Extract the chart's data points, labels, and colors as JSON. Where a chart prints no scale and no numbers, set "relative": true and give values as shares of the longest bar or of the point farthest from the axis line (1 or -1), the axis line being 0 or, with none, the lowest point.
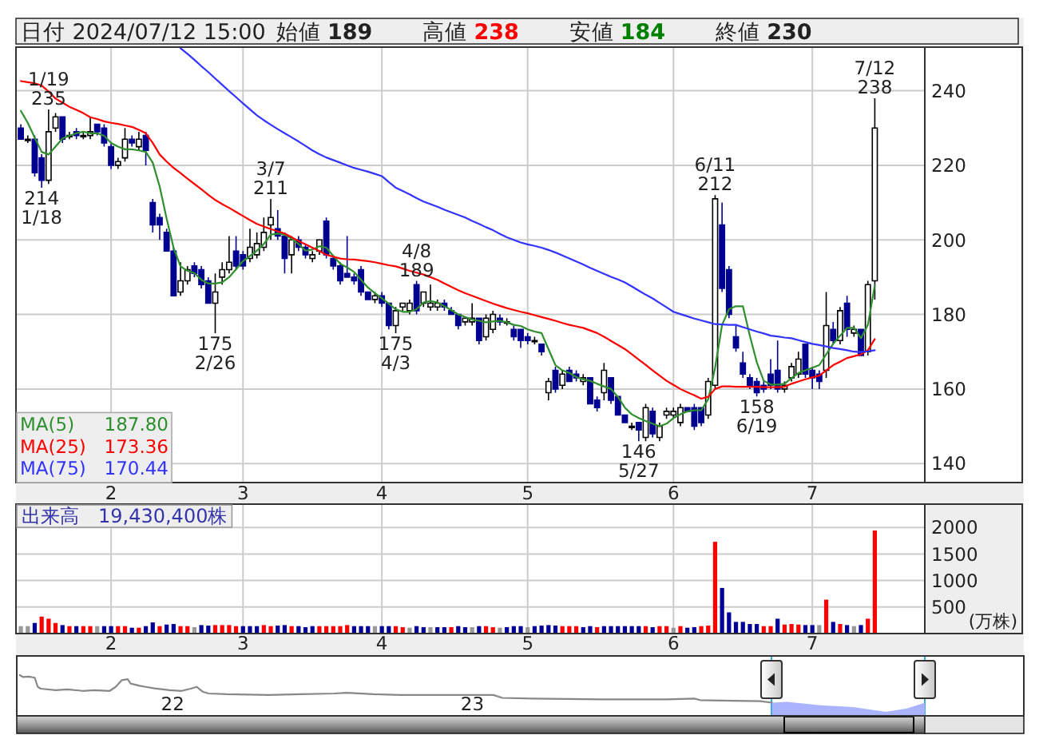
{
  "chart_data": [
    {
      "type": "candlestick",
      "title": "日付 2024/07/12 15:00 始値 189 高値 238 安値 184 終値 230",
      "categories": [
        null,
        null,
        null,
        null,
        null,
        null,
        null,
        null,
        null,
        null,
        null,
        null,
        null,
        "2",
        null,
        null,
        null,
        null,
        null,
        null,
        null,
        null,
        null,
        null,
        null,
        null,
        null,
        null,
        null,
        null,
        null,
        null,
        "3",
        null,
        null,
        null,
        null,
        null,
        null,
        null,
        null,
        null,
        null,
        null,
        null,
        null,
        null,
        null,
        null,
        null,
        null,
        null,
        "4",
        null,
        null,
        null,
        null,
        null,
        null,
        null,
        null,
        null,
        null,
        null,
        null,
        null,
        null,
        null,
        null,
        null,
        null,
        null,
        null,
        "5",
        null,
        null,
        null,
        null,
        null,
        null,
        null,
        null,
        null,
        null,
        null,
        null,
        null,
        null,
        null,
        null,
        null,
        null,
        null,
        null,
        "6",
        null,
        null,
        null,
        null,
        null,
        null,
        null,
        null,
        null,
        null,
        null,
        null,
        null,
        null,
        null,
        null,
        null,
        null,
        null,
        "7",
        null,
        null,
        null,
        null,
        null,
        null,
        null,
        null,
        null
      ],
      "ohlc": [
        [
          230,
          231,
          227,
          227
        ],
        [
          227,
          228,
          226,
          227
        ],
        [
          227,
          228,
          217,
          218
        ],
        [
          222,
          223,
          214,
          216
        ],
        [
          216,
          235,
          215,
          229
        ],
        [
          230,
          234,
          229,
          233
        ],
        [
          233,
          233,
          226,
          227
        ],
        [
          228,
          229,
          227,
          228
        ],
        [
          229,
          230,
          227,
          228
        ],
        [
          228,
          229,
          227,
          228
        ],
        [
          228,
          233,
          227,
          229
        ],
        [
          231,
          231,
          228,
          229
        ],
        [
          230,
          231,
          225,
          226
        ],
        [
          225,
          226,
          219,
          220
        ],
        [
          220,
          222,
          219,
          221
        ],
        [
          222,
          230,
          221,
          227
        ],
        [
          227,
          228,
          225,
          226
        ],
        [
          225,
          229,
          224,
          227
        ],
        [
          228,
          229,
          220,
          224
        ],
        [
          210,
          211,
          202,
          204
        ],
        [
          206,
          207,
          200,
          204
        ],
        [
          202,
          203,
          197,
          197
        ],
        [
          197,
          198,
          185,
          185
        ],
        [
          186,
          194,
          185,
          189
        ],
        [
          189,
          193,
          188,
          192
        ],
        [
          193,
          194,
          190,
          191
        ],
        [
          192,
          193,
          187,
          188
        ],
        [
          189,
          190,
          183,
          183
        ],
        [
          183,
          191,
          175,
          186
        ],
        [
          190,
          194,
          188,
          192
        ],
        [
          192,
          201,
          191,
          194
        ],
        [
          197,
          201,
          192,
          193
        ],
        [
          196,
          197,
          192,
          193
        ],
        [
          195,
          203,
          194,
          198
        ],
        [
          196,
          202,
          195,
          199
        ],
        [
          198,
          206,
          197,
          202
        ],
        [
          204,
          211,
          200,
          206
        ],
        [
          203,
          208,
          200,
          201
        ],
        [
          201,
          202,
          191,
          195
        ],
        [
          196,
          201,
          191,
          200
        ],
        [
          200,
          201,
          197,
          198
        ],
        [
          198,
          199,
          195,
          196
        ],
        [
          195,
          197,
          194,
          196
        ],
        [
          197,
          200,
          196,
          200
        ],
        [
          205,
          206,
          195,
          196
        ],
        [
          195,
          196,
          192,
          193
        ],
        [
          193,
          194,
          188,
          189
        ],
        [
          191,
          201,
          190,
          190
        ],
        [
          190,
          191,
          188,
          189
        ],
        [
          192,
          193,
          185,
          186
        ],
        [
          186,
          186,
          184,
          184
        ],
        [
          184,
          186,
          183,
          185
        ],
        [
          185,
          186,
          182,
          183
        ],
        [
          183,
          183,
          176,
          177
        ],
        [
          177,
          182,
          175,
          181
        ],
        [
          182,
          183,
          181,
          183
        ],
        [
          181,
          184,
          180,
          183
        ],
        [
          188,
          189,
          180,
          181
        ],
        [
          183,
          186,
          182,
          186
        ],
        [
          182,
          188,
          181,
          183
        ],
        [
          182,
          184,
          181,
          183
        ],
        [
          183,
          184,
          181,
          182
        ],
        [
          181,
          182,
          180,
          180
        ],
        [
          180,
          180,
          176,
          177
        ],
        [
          178,
          179,
          177,
          179
        ],
        [
          178,
          183,
          177,
          179
        ],
        [
          179,
          179,
          172,
          173
        ],
        [
          174,
          180,
          173,
          179
        ],
        [
          176,
          181,
          175,
          180
        ],
        [
          179,
          180,
          177,
          178
        ],
        [
          178,
          179,
          177,
          178
        ],
        [
          176,
          177,
          173,
          174
        ],
        [
          176,
          176,
          171,
          173
        ],
        [
          174,
          175,
          172,
          173
        ],
        [
          173,
          174,
          172,
          173
        ],
        [
          172,
          172,
          169,
          170
        ],
        [
          159,
          163,
          157,
          162
        ],
        [
          165,
          166,
          159,
          160
        ],
        [
          161,
          165,
          160,
          164
        ],
        [
          165,
          166,
          162,
          162
        ],
        [
          164,
          165,
          162,
          163
        ],
        [
          162,
          164,
          161,
          163
        ],
        [
          163,
          163,
          156,
          156
        ],
        [
          157,
          158,
          154,
          155
        ],
        [
          159,
          167,
          157,
          165
        ],
        [
          163,
          163,
          156,
          157
        ],
        [
          158,
          158,
          153,
          153
        ],
        [
          153,
          153,
          151,
          151
        ],
        [
          150,
          151,
          149,
          150
        ],
        [
          151,
          151,
          146,
          149
        ],
        [
          147,
          156,
          146,
          155
        ],
        [
          154,
          155,
          147,
          148
        ],
        [
          147,
          151,
          146,
          150
        ],
        [
          153,
          155,
          152,
          154
        ],
        [
          153,
          155,
          152,
          154
        ],
        [
          151,
          156,
          150,
          155
        ],
        [
          155,
          155,
          154,
          154
        ],
        [
          155,
          156,
          149,
          150
        ],
        [
          155,
          155,
          150,
          151
        ],
        [
          153,
          163,
          152,
          162
        ],
        [
          161,
          212,
          160,
          211
        ],
        [
          204,
          210,
          186,
          187
        ],
        [
          192,
          193,
          179,
          180
        ],
        [
          174,
          177,
          170,
          171
        ],
        [
          167,
          170,
          163,
          164
        ],
        [
          163,
          164,
          160,
          161
        ],
        [
          162,
          163,
          158,
          159
        ],
        [
          161,
          162,
          159,
          160
        ],
        [
          164,
          168,
          160,
          161
        ],
        [
          165,
          173,
          159,
          160
        ],
        [
          160,
          162,
          159,
          161
        ],
        [
          163,
          167,
          162,
          166
        ],
        [
          164,
          170,
          163,
          168
        ],
        [
          172,
          172,
          163,
          164
        ],
        [
          165,
          166,
          160,
          163
        ],
        [
          164,
          165,
          160,
          162
        ],
        [
          165,
          186,
          163,
          177
        ],
        [
          176,
          178,
          172,
          173
        ],
        [
          173,
          182,
          172,
          181
        ],
        [
          183,
          185,
          174,
          176
        ],
        [
          175,
          177,
          174,
          176
        ],
        [
          176,
          176,
          169,
          169
        ],
        [
          170,
          189,
          169,
          188
        ],
        [
          189,
          238,
          184,
          230
        ]
      ],
      "series": [
        {
          "name": "MA(5)",
          "type": "line",
          "color": "#2f8f2f",
          "values": [
            234.6,
            231.4,
            227.4,
            223.6,
            222.9,
            225.0,
            227.2,
            227.9,
            228.6,
            229.0,
            228.6,
            228.6,
            227.9,
            226.0,
            225.0,
            224.3,
            224.3,
            224.0,
            223.6,
            220.7,
            214.3,
            205.7,
            197.9,
            192.9,
            191.7,
            191.1,
            189.3,
            188.3,
            188.3,
            188.6,
            190.0,
            192.1,
            194.3,
            195.7,
            197.1,
            198.9,
            201.4,
            201.7,
            201.4,
            200.3,
            198.9,
            197.1,
            197.4,
            198.3,
            197.9,
            195.7,
            193.6,
            192.6,
            191.4,
            189.3,
            187.2,
            185.7,
            184.3,
            182.9,
            181.4,
            180.7,
            180.7,
            181.4,
            183.2,
            183.6,
            183.2,
            182.2,
            181.2,
            180.0,
            179.3,
            178.6,
            178.3,
            177.9,
            178.1,
            178.3,
            177.9,
            177.2,
            176.9,
            176.0,
            175.4,
            175.0,
            170.7,
            166.4,
            165.0,
            164.3,
            163.2,
            162.6,
            162.2,
            161.4,
            160.7,
            160.0,
            157.9,
            155.0,
            153.2,
            152.2,
            151.4,
            150.7,
            150.0,
            150.7,
            152.2,
            153.2,
            154.0,
            154.3,
            154.3,
            157.2,
            165.7,
            177.2,
            181.4,
            182.2,
            182.2,
            174.3,
            167.2,
            162.2,
            161.2,
            161.2,
            161.4,
            162.9,
            164.3,
            165.0,
            165.7,
            166.4,
            169.3,
            172.1,
            174.3,
            176.4,
            176.4,
            173.6,
            177.2,
            187.8
          ]
        },
        {
          "name": "MA(25)",
          "type": "line",
          "color": "#ff0000",
          "values": [
            242.6,
            242.3,
            242.0,
            241.4,
            239.8,
            237.9,
            236.8,
            235.7,
            234.9,
            234.0,
            232.9,
            232.4,
            231.8,
            231.4,
            231.1,
            230.7,
            230.3,
            229.5,
            228.6,
            226.0,
            222.9,
            221.0,
            219.3,
            217.9,
            216.4,
            215.0,
            213.6,
            212.1,
            210.7,
            209.6,
            208.6,
            207.5,
            206.4,
            205.3,
            204.3,
            203.6,
            202.9,
            202.3,
            201.7,
            200.7,
            199.7,
            198.8,
            197.9,
            197.0,
            196.0,
            195.5,
            195.0,
            194.8,
            194.7,
            194.5,
            194.3,
            194.0,
            193.6,
            193.2,
            192.9,
            192.3,
            191.7,
            191.2,
            190.7,
            190.0,
            189.3,
            188.3,
            187.4,
            186.5,
            185.7,
            185.0,
            184.3,
            183.6,
            182.9,
            182.3,
            181.7,
            181.2,
            180.7,
            180.3,
            179.8,
            179.3,
            178.8,
            178.3,
            177.7,
            177.2,
            176.8,
            176.4,
            175.7,
            175.0,
            174.0,
            172.9,
            171.8,
            170.7,
            169.3,
            167.9,
            166.5,
            165.0,
            163.6,
            162.2,
            161.1,
            160.0,
            159.1,
            158.3,
            157.4,
            157.9,
            160.0,
            160.7,
            160.7,
            160.6,
            160.6,
            160.6,
            160.6,
            160.5,
            160.5,
            160.5,
            160.6,
            161.4,
            162.0,
            162.6,
            163.1,
            163.6,
            165.0,
            166.4,
            167.3,
            168.3,
            168.8,
            169.3,
            170.4,
            173.4
          ]
        },
        {
          "name": "MA(75)",
          "type": "line",
          "color": "#3333ff",
          "values": [
            null,
            null,
            null,
            null,
            null,
            null,
            null,
            null,
            null,
            null,
            null,
            null,
            null,
            null,
            null,
            null,
            null,
            null,
            null,
            null,
            null,
            null,
            null,
            251.4,
            249.9,
            248.3,
            246.6,
            245.0,
            243.3,
            241.6,
            239.9,
            238.3,
            236.6,
            235.0,
            233.4,
            232.1,
            230.9,
            229.7,
            228.6,
            227.5,
            226.4,
            225.2,
            224.0,
            223.0,
            222.1,
            221.4,
            220.7,
            220.0,
            219.3,
            218.8,
            218.3,
            217.7,
            217.1,
            215.5,
            214.0,
            213.1,
            212.2,
            211.2,
            210.3,
            209.6,
            208.9,
            208.1,
            207.4,
            206.7,
            206.0,
            205.1,
            204.3,
            203.4,
            202.6,
            201.6,
            200.7,
            200.0,
            199.3,
            198.8,
            198.4,
            197.9,
            197.3,
            196.6,
            195.8,
            195.0,
            194.2,
            193.4,
            192.5,
            191.7,
            190.9,
            190.1,
            189.4,
            188.6,
            187.5,
            186.4,
            185.3,
            184.3,
            183.1,
            181.9,
            180.7,
            180.1,
            179.5,
            178.9,
            178.4,
            177.9,
            177.4,
            177.3,
            177.2,
            177.2,
            176.6,
            176.0,
            175.4,
            174.9,
            174.3,
            174.1,
            173.8,
            173.6,
            173.1,
            172.6,
            172.1,
            171.8,
            171.4,
            171.0,
            170.7,
            170.4,
            170.0,
            169.9,
            170.1,
            170.4
          ]
        }
      ],
      "ylim": [
        134.9,
        251.7
      ],
      "yticks": [
        140,
        160,
        180,
        200,
        220,
        240
      ],
      "grid": true,
      "legend": "bottom left",
      "annotations": [
        {
          "text": "1/19\n235",
          "y": 235
        },
        {
          "text": "214\n1/18",
          "y": 214
        },
        {
          "text": "175\n2/26",
          "y": 175
        },
        {
          "text": "3/7\n211",
          "y": 211
        },
        {
          "text": "175\n4/3",
          "y": 175
        },
        {
          "text": "4/8\n189",
          "y": 189
        },
        {
          "text": "146\n5/27",
          "y": 146
        },
        {
          "text": "6/11\n212",
          "y": 212
        },
        {
          "text": "158\n6/19",
          "y": 158
        },
        {
          "text": "7/12\n238",
          "y": 238
        },
        "187.80",
        "173.36",
        "170.44"
      ]
    },
    {
      "type": "bar",
      "title": "出来高　19,430,400株",
      "ylabel": "(万株)",
      "categories": [
        null,
        null,
        null,
        null,
        null,
        null,
        null,
        null,
        null,
        null,
        null,
        null,
        null,
        "2",
        null,
        null,
        null,
        null,
        null,
        null,
        null,
        null,
        null,
        null,
        null,
        null,
        null,
        null,
        null,
        null,
        null,
        null,
        "3",
        null,
        null,
        null,
        null,
        null,
        null,
        null,
        null,
        null,
        null,
        null,
        null,
        null,
        null,
        null,
        null,
        null,
        null,
        null,
        "4",
        null,
        null,
        null,
        null,
        null,
        null,
        null,
        null,
        null,
        null,
        null,
        null,
        null,
        null,
        null,
        null,
        null,
        null,
        null,
        null,
        "5",
        null,
        null,
        null,
        null,
        null,
        null,
        null,
        null,
        null,
        null,
        null,
        null,
        null,
        null,
        null,
        null,
        null,
        null,
        null,
        null,
        "6",
        null,
        null,
        null,
        null,
        null,
        null,
        null,
        null,
        null,
        null,
        null,
        null,
        null,
        null,
        null,
        null,
        null,
        null,
        null,
        "7",
        null,
        null,
        null,
        null,
        null,
        null,
        null,
        null,
        null
      ],
      "values": [
        140,
        140,
        200,
        320,
        280,
        200,
        160,
        140,
        140,
        140,
        140,
        140,
        140,
        140,
        140,
        140,
        110,
        110,
        140,
        210,
        140,
        170,
        180,
        140,
        140,
        120,
        160,
        150,
        160,
        160,
        160,
        140,
        140,
        140,
        140,
        160,
        140,
        150,
        160,
        140,
        140,
        120,
        140,
        140,
        140,
        140,
        140,
        160,
        140,
        140,
        140,
        140,
        140,
        140,
        140,
        120,
        110,
        140,
        120,
        120,
        120,
        120,
        120,
        140,
        120,
        120,
        140,
        140,
        120,
        110,
        120,
        140,
        140,
        120,
        140,
        150,
        160,
        150,
        140,
        140,
        140,
        120,
        140,
        120,
        140,
        140,
        140,
        140,
        140,
        140,
        140,
        120,
        140,
        140,
        110,
        140,
        110,
        120,
        140,
        150,
        1730,
        860,
        400,
        220,
        220,
        180,
        180,
        140,
        140,
        280,
        170,
        180,
        170,
        160,
        160,
        160,
        640,
        220,
        180,
        160,
        140,
        160,
        280,
        1943.04
      ],
      "colors": [
        "#999999",
        "#999999",
        "#000099",
        "#ff0000",
        "#ff0000",
        "#ff0000",
        "#000099",
        "#ff0000",
        "#000099",
        "#ff0000",
        "#ff0000",
        "#999999",
        "#000099",
        "#000099",
        "#ff0000",
        "#ff0000",
        "#000099",
        "#ff0000",
        "#000099",
        "#000099",
        "#ff0000",
        "#000099",
        "#000099",
        "#ff0000",
        "#ff0000",
        "#999999",
        "#000099",
        "#000099",
        "#ff0000",
        "#ff0000",
        "#ff0000",
        "#ff0000",
        "#000099",
        "#000099",
        "#000099",
        "#ff0000",
        "#ff0000",
        "#000099",
        "#000099",
        "#ff0000",
        "#000099",
        "#000099",
        "#000099",
        "#ff0000",
        "#ff0000",
        "#ff0000",
        "#ff0000",
        "#ff0000",
        "#000099",
        "#000099",
        "#000099",
        "#999999",
        "#000099",
        "#000099",
        "#ff0000",
        "#ff0000",
        "#999999",
        "#000099",
        "#000099",
        "#999999",
        "#000099",
        "#000099",
        "#ff0000",
        "#000099",
        "#000099",
        "#999999",
        "#000099",
        "#ff0000",
        "#ff0000",
        "#999999",
        "#000099",
        "#000099",
        "#000099",
        "#999999",
        "#000099",
        "#000099",
        "#000099",
        "#000099",
        "#ff0000",
        "#ff0000",
        "#ff0000",
        "#000099",
        "#000099",
        "#ff0000",
        "#000099",
        "#000099",
        "#000099",
        "#000099",
        "#000099",
        "#000099",
        "#ff0000",
        "#000099",
        "#ff0000",
        "#ff0000",
        "#999999",
        "#ff0000",
        "#000099",
        "#000099",
        "#ff0000",
        "#ff0000",
        "#ff0000",
        "#000099",
        "#000099",
        "#000099",
        "#000099",
        "#000099",
        "#000099",
        "#ff0000",
        "#ff0000",
        "#000099",
        "#ff0000",
        "#ff0000",
        "#ff0000",
        "#000099",
        "#000099",
        "#999999",
        "#ff0000",
        "#000099",
        "#ff0000",
        "#000099",
        "#999999",
        "#000099",
        "#ff0000",
        "#ff0000"
      ],
      "ylim": [
        0,
        2440
      ],
      "yticks": [
        500,
        1000,
        1500,
        2000
      ],
      "grid": true
    },
    {
      "type": "line",
      "relative": true,
      "series": [
        {
          "type": "line",
          "color": "#888888",
          "x": [
            2021.49,
            2021.5,
            2021.52,
            2021.54,
            2021.55,
            2021.56,
            2021.61,
            2021.65,
            2021.7,
            2021.74,
            2021.79,
            2021.81,
            2021.83,
            2021.85,
            2021.86,
            2021.89,
            2021.91,
            2021.94,
            2021.99,
            2022.03,
            2022.06,
            2022.08,
            2022.1,
            2022.12,
            2022.18,
            2022.32,
            2022.43,
            2022.54,
            2022.58,
            2022.67,
            2022.76,
            2022.98,
            2023.07,
            2023.1,
            2023.2,
            2023.43,
            2023.65,
            2023.74,
            2023.76,
            2023.87,
            2023.96,
            2024
          ],
          "values": [
            1,
            0.95,
            0.96,
            0.93,
            0.68,
            0.63,
            0.59,
            0.61,
            0.57,
            0.59,
            0.57,
            0.68,
            0.86,
            0.89,
            0.77,
            0.71,
            0.68,
            0.64,
            0.59,
            0.57,
            0.63,
            0.68,
            0.55,
            0.5,
            0.48,
            0.46,
            0.48,
            0.5,
            0.52,
            0.48,
            0.46,
            0.46,
            0.46,
            0.38,
            0.36,
            0.34,
            0.34,
            0.36,
            0.32,
            0.3,
            0.29,
            0.25
          ]
        },
        {
          "type": "area",
          "color": "#aab3ff",
          "x": [
            2024,
            2024.05,
            2024.16,
            2024.27,
            2024.38,
            2024.45,
            2024.51
          ],
          "values": [
            0.25,
            0.27,
            0.18,
            0.13,
            0,
            0.09,
            0.25
          ]
        }
      ],
      "xlim": [
        2021.48,
        2024.84
      ],
      "xticks": [
        {
          "value": 2022,
          "label": "22"
        },
        {
          "value": 2023,
          "label": "23"
        }
      ]
    }
  ]
}
